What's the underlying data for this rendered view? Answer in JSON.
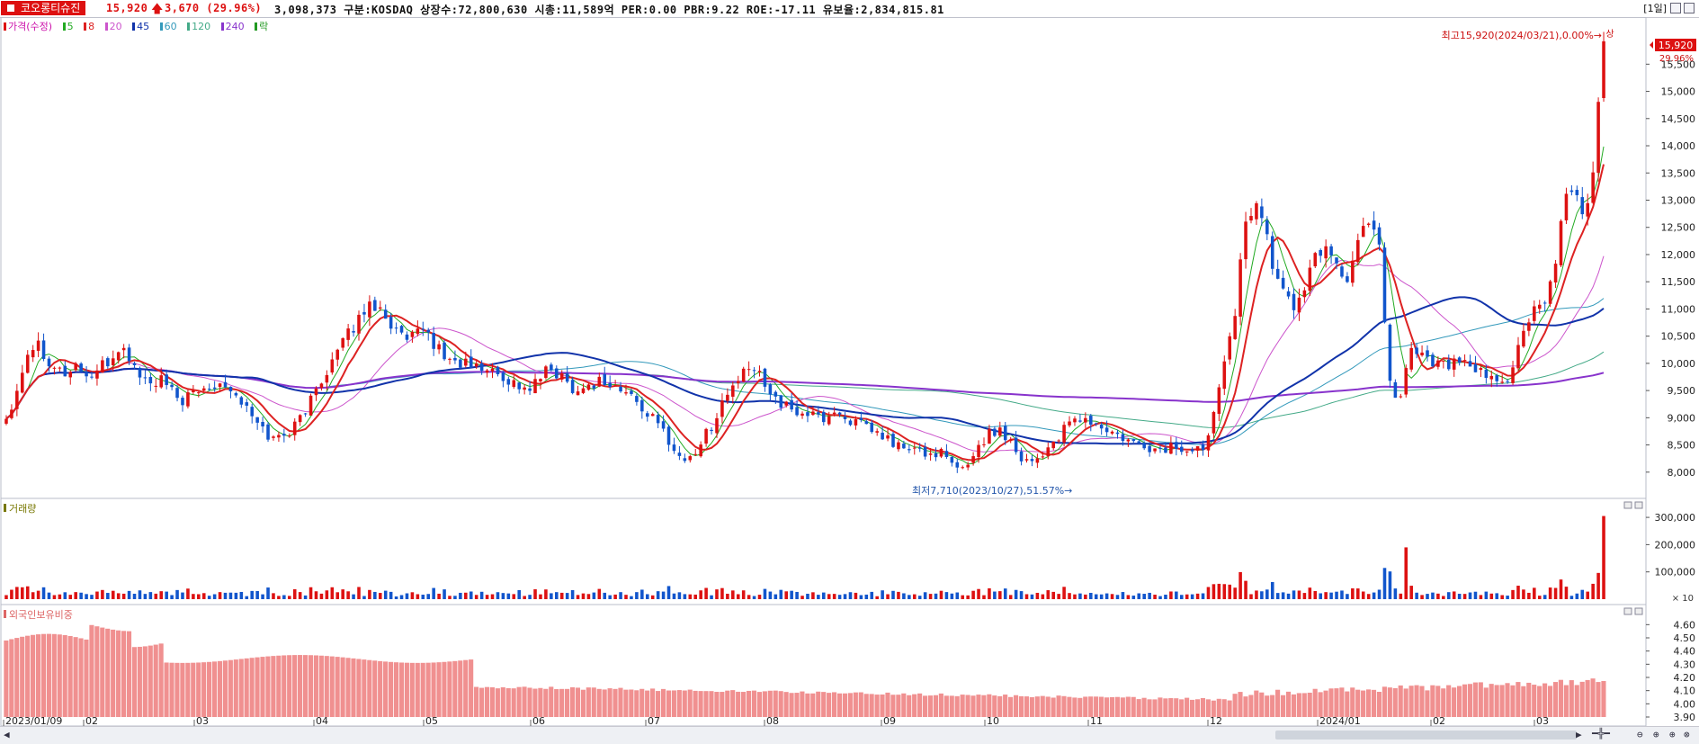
{
  "header": {
    "stock_name": "코오롱티슈진",
    "price": "15,920",
    "change": "3,670",
    "change_pct": "(29.96%)",
    "info": "3,098,373  구분:KOSDAQ 상장수:72,800,630 시총:11,589억 PER:0.00 PBR:9.22 ROE:-17.11 유보율:2,834,815.81",
    "period": "[1일]"
  },
  "legend": {
    "price_label": "가격(수정)",
    "ma": [
      {
        "label": "5",
        "color": "#22aa22"
      },
      {
        "label": "8",
        "color": "#dd2222"
      },
      {
        "label": "20",
        "color": "#cc55cc"
      },
      {
        "label": "45",
        "color": "#1133aa"
      },
      {
        "label": "60",
        "color": "#3399bb"
      },
      {
        "label": "120",
        "color": "#44aa88"
      },
      {
        "label": "240",
        "color": "#8833cc"
      }
    ],
    "extra": "락"
  },
  "annotations": {
    "high": "최고15,920(2024/03/21),0.00%→",
    "high_mark": "상",
    "low": "최저7,710(2023/10/27),51.57%→",
    "current_tag": "15,920",
    "current_pct": "29.96%"
  },
  "volume_panel": {
    "title": "거래량",
    "unit": "× 10",
    "ticks": [
      "300,000",
      "200,000",
      "100,000"
    ]
  },
  "foreign_panel": {
    "title": "외국인보유비중",
    "ticks": [
      "4.60",
      "4.50",
      "4.40",
      "4.30",
      "4.20",
      "4.10",
      "4.00",
      "3.90"
    ]
  },
  "x_axis": [
    "2023/01/09",
    "02",
    "03",
    "04",
    "05",
    "06",
    "07",
    "08",
    "09",
    "10",
    "11",
    "12",
    "2024/01",
    "02",
    "03"
  ],
  "colors": {
    "up": "#dd1111",
    "down": "#1155cc",
    "foreign": "#f09090"
  },
  "chart_data": {
    "type": "candlestick",
    "y_ticks": [
      8000,
      8500,
      9000,
      9500,
      10000,
      10500,
      11000,
      11500,
      12000,
      12500,
      13000,
      13500,
      14000,
      14500,
      15000,
      15500
    ],
    "ylim": [
      7600,
      16200
    ],
    "close_series": [
      9000,
      9500,
      10200,
      10400,
      10100,
      9900,
      9800,
      10000,
      9700,
      9900,
      10000,
      10300,
      10100,
      9800,
      9600,
      9700,
      9500,
      9300,
      9400,
      9500,
      9600,
      9700,
      9500,
      9300,
      9000,
      8800,
      8600,
      8700,
      8800,
      9100,
      9400,
      9800,
      10100,
      10400,
      10700,
      11000,
      11100,
      10900,
      10600,
      10400,
      10500,
      10600,
      10300,
      10100,
      10000,
      10000,
      9900,
      9900,
      9800,
      9700,
      9600,
      9500,
      9700,
      9900,
      9800,
      9600,
      9500,
      9600,
      9700,
      9600,
      9500,
      9400,
      9200,
      9000,
      8800,
      8500,
      8200,
      8300,
      8600,
      8900,
      9300,
      9600,
      9800,
      9900,
      9700,
      9400,
      9200,
      9100,
      9100,
      9000,
      9000,
      9100,
      9000,
      8900,
      8800,
      8700,
      8600,
      8500,
      8400,
      8400,
      8300,
      8400,
      8200,
      8000,
      8200,
      8500,
      8700,
      8800,
      8600,
      8300,
      8200,
      8300,
      8500,
      8700,
      8900,
      9000,
      8900,
      8800,
      8700,
      8600,
      8500,
      8500,
      8400,
      8400,
      8500,
      8400,
      8350,
      8500,
      9200,
      10200,
      11000,
      12500,
      13100,
      12400,
      11500,
      11300,
      11000,
      11500,
      12000,
      12200,
      11800,
      11500,
      12200,
      12700,
      12400,
      9800,
      9200,
      10300,
      10200,
      10100,
      10000,
      10000,
      10000,
      9900,
      9800,
      9700,
      9600,
      9900,
      10500,
      10900,
      11000,
      11500,
      12800,
      13300,
      12700,
      13500,
      15920
    ]
  }
}
